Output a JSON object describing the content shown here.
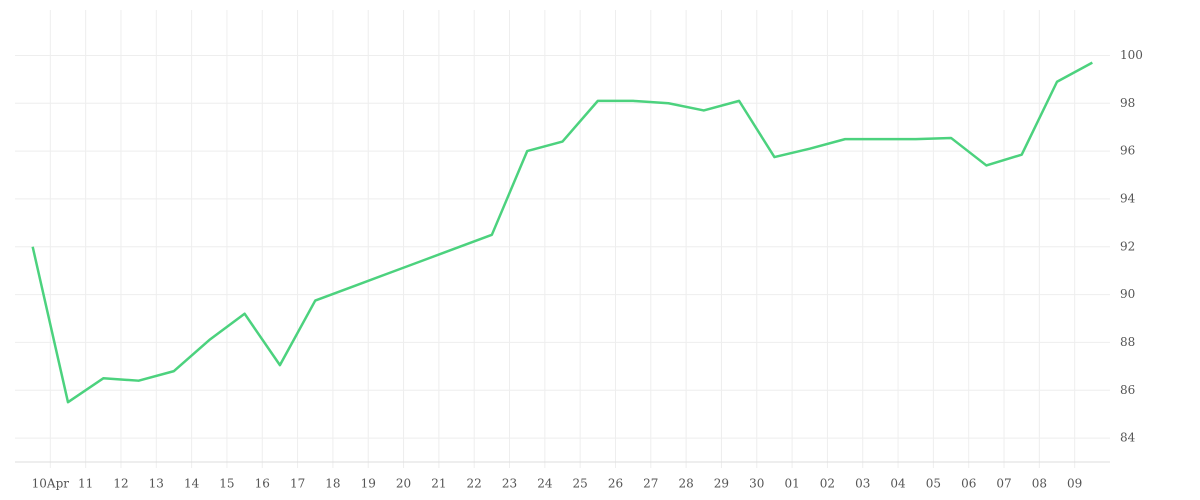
{
  "chart_data": {
    "type": "line",
    "x": [
      0,
      1,
      2,
      3,
      4,
      5,
      6,
      7,
      8,
      9,
      10,
      11,
      12,
      13,
      14,
      15,
      16,
      17,
      18,
      19,
      20,
      21,
      22,
      23,
      24,
      25,
      26,
      27,
      28,
      29,
      30
    ],
    "values": [
      92.0,
      85.5,
      86.5,
      86.4,
      86.8,
      88.1,
      89.2,
      87.05,
      89.75,
      90.3,
      90.85,
      91.4,
      91.95,
      92.5,
      96.0,
      96.4,
      98.1,
      98.1,
      98.0,
      97.7,
      98.1,
      95.75,
      96.1,
      96.5,
      96.5,
      96.5,
      96.55,
      95.4,
      95.85,
      98.9,
      99.7
    ],
    "color": "#4cd27e",
    "xlim": [
      -0.5,
      30.5
    ],
    "xticks": [
      {
        "value": 0.5,
        "label": "10Apr"
      },
      {
        "value": 1.5,
        "label": "11"
      },
      {
        "value": 2.5,
        "label": "12"
      },
      {
        "value": 3.5,
        "label": "13"
      },
      {
        "value": 4.5,
        "label": "14"
      },
      {
        "value": 5.5,
        "label": "15"
      },
      {
        "value": 6.5,
        "label": "16"
      },
      {
        "value": 7.5,
        "label": "17"
      },
      {
        "value": 8.5,
        "label": "18"
      },
      {
        "value": 9.5,
        "label": "19"
      },
      {
        "value": 10.5,
        "label": "20"
      },
      {
        "value": 11.5,
        "label": "21"
      },
      {
        "value": 12.5,
        "label": "22"
      },
      {
        "value": 13.5,
        "label": "23"
      },
      {
        "value": 14.5,
        "label": "24"
      },
      {
        "value": 15.5,
        "label": "25"
      },
      {
        "value": 16.5,
        "label": "26"
      },
      {
        "value": 17.5,
        "label": "27"
      },
      {
        "value": 18.5,
        "label": "28"
      },
      {
        "value": 19.5,
        "label": "29"
      },
      {
        "value": 20.5,
        "label": "30"
      },
      {
        "value": 21.5,
        "label": "01"
      },
      {
        "value": 22.5,
        "label": "02"
      },
      {
        "value": 23.5,
        "label": "03"
      },
      {
        "value": 24.5,
        "label": "04"
      },
      {
        "value": 25.5,
        "label": "05"
      },
      {
        "value": 26.5,
        "label": "06"
      },
      {
        "value": 27.5,
        "label": "07"
      },
      {
        "value": 28.5,
        "label": "08"
      },
      {
        "value": 29.5,
        "label": "09"
      }
    ],
    "ylim": [
      83,
      101.9
    ],
    "yticks": [
      84,
      86,
      88,
      90,
      92,
      94,
      96,
      98,
      100
    ],
    "grid": true
  }
}
